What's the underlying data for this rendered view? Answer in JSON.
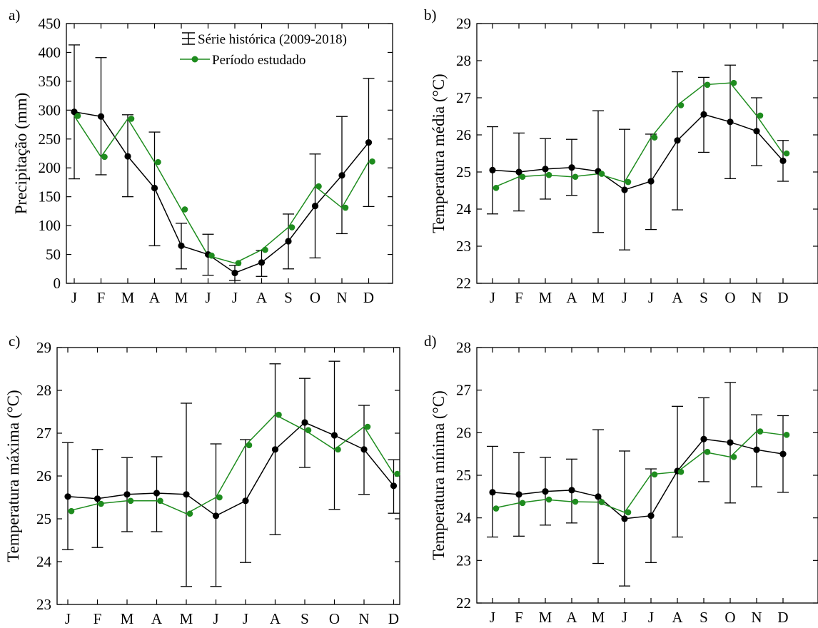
{
  "colors": {
    "historical": "#000000",
    "studied": "#1e8c1e",
    "axis": "#000000"
  },
  "legend": {
    "historical": "Série histórica (2009-2018)",
    "studied": "Período estudado"
  },
  "months": [
    "J",
    "F",
    "M",
    "A",
    "M",
    "J",
    "J",
    "A",
    "S",
    "O",
    "N",
    "D"
  ],
  "chart_data": [
    {
      "panel": "a)",
      "type": "line",
      "ylabel": "Precipitação (mm)",
      "ylim": [
        0,
        450
      ],
      "yticks": [
        0,
        50,
        100,
        150,
        200,
        250,
        300,
        350,
        400,
        450
      ],
      "categories": [
        "J",
        "F",
        "M",
        "A",
        "M",
        "J",
        "J",
        "A",
        "S",
        "O",
        "N",
        "D"
      ],
      "legend_position": "top-right",
      "series": [
        {
          "name": "Série histórica (2009-2018)",
          "values": [
            297,
            289,
            220,
            165,
            65,
            50,
            18,
            36,
            73,
            134,
            187,
            244
          ],
          "err_low": [
            181,
            188,
            150,
            65,
            25,
            14,
            5,
            12,
            25,
            44,
            86,
            133
          ],
          "err_high": [
            413,
            391,
            292,
            262,
            104,
            85,
            31,
            57,
            120,
            224,
            289,
            355
          ]
        },
        {
          "name": "Período estudado",
          "values": [
            290,
            219,
            285,
            210,
            128,
            48,
            35,
            58,
            97,
            168,
            131,
            211
          ]
        }
      ]
    },
    {
      "panel": "b)",
      "type": "line",
      "ylabel": "Temperatura média (°C)",
      "ylim": [
        22,
        29
      ],
      "yticks": [
        22,
        23,
        24,
        25,
        26,
        27,
        28,
        29
      ],
      "categories": [
        "J",
        "F",
        "M",
        "A",
        "M",
        "J",
        "J",
        "A",
        "S",
        "O",
        "N",
        "D"
      ],
      "series": [
        {
          "name": "Série histórica (2009-2018)",
          "values": [
            25.05,
            25.0,
            25.08,
            25.12,
            25.02,
            24.52,
            24.75,
            25.85,
            26.55,
            26.35,
            26.1,
            25.3
          ],
          "err_low": [
            23.87,
            23.95,
            24.27,
            24.37,
            23.37,
            22.9,
            23.45,
            23.98,
            25.53,
            24.82,
            25.17,
            24.75
          ],
          "err_high": [
            26.22,
            26.05,
            25.9,
            25.88,
            26.65,
            26.15,
            26.02,
            27.7,
            27.55,
            27.88,
            27.0,
            25.85
          ]
        },
        {
          "name": "Período estudado",
          "values": [
            24.57,
            24.87,
            24.92,
            24.87,
            24.95,
            24.73,
            25.93,
            26.8,
            27.35,
            27.4,
            26.52,
            25.5
          ]
        }
      ]
    },
    {
      "panel": "c)",
      "type": "line",
      "ylabel": "Temperatura máxima (°C)",
      "ylim": [
        23,
        29
      ],
      "yticks": [
        23,
        24,
        25,
        26,
        27,
        28,
        29
      ],
      "categories": [
        "J",
        "F",
        "M",
        "A",
        "M",
        "J",
        "J",
        "A",
        "S",
        "O",
        "N",
        "D"
      ],
      "series": [
        {
          "name": "Série histórica (2009-2018)",
          "values": [
            25.52,
            25.47,
            25.57,
            25.6,
            25.57,
            25.07,
            25.42,
            26.62,
            27.25,
            26.95,
            26.62,
            25.77
          ],
          "err_low": [
            24.28,
            24.33,
            24.7,
            24.7,
            23.42,
            23.42,
            23.98,
            24.63,
            26.2,
            25.22,
            25.57,
            25.13
          ],
          "err_high": [
            26.78,
            26.62,
            26.43,
            26.45,
            27.7,
            26.75,
            26.85,
            28.62,
            28.28,
            28.68,
            27.65,
            26.38
          ]
        },
        {
          "name": "Período estudado",
          "values": [
            25.18,
            25.35,
            25.42,
            25.42,
            25.12,
            25.5,
            26.72,
            27.43,
            27.07,
            26.62,
            27.15,
            26.05
          ]
        }
      ]
    },
    {
      "panel": "d)",
      "type": "line",
      "ylabel": "Temperatura mínima (°C)",
      "ylim": [
        22,
        28
      ],
      "yticks": [
        22,
        23,
        24,
        25,
        26,
        27,
        28
      ],
      "categories": [
        "J",
        "F",
        "M",
        "A",
        "M",
        "J",
        "J",
        "A",
        "S",
        "O",
        "N",
        "D"
      ],
      "series": [
        {
          "name": "Série histórica (2009-2018)",
          "values": [
            24.6,
            24.55,
            24.62,
            24.65,
            24.5,
            23.98,
            24.05,
            25.1,
            25.85,
            25.77,
            25.6,
            25.5
          ],
          "err_low": [
            23.55,
            23.57,
            23.83,
            23.88,
            22.93,
            22.4,
            22.95,
            23.55,
            24.85,
            24.35,
            24.73,
            24.6
          ],
          "err_high": [
            25.68,
            25.53,
            25.42,
            25.38,
            26.07,
            25.57,
            25.15,
            26.62,
            26.82,
            27.18,
            26.42,
            26.4
          ]
        },
        {
          "name": "Período estudado",
          "values": [
            24.22,
            24.35,
            24.43,
            24.38,
            24.37,
            24.13,
            25.02,
            25.08,
            25.55,
            25.43,
            26.03,
            25.95
          ]
        }
      ]
    }
  ]
}
